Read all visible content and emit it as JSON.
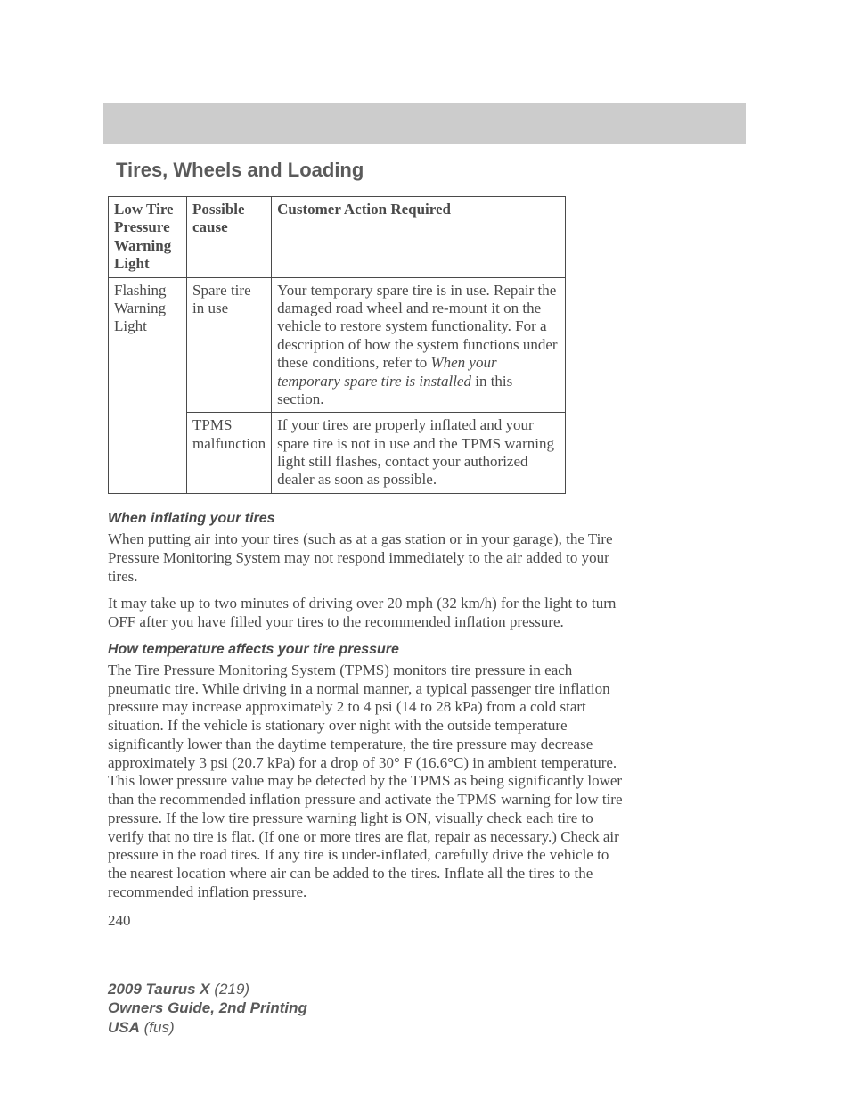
{
  "section_title": "Tires, Wheels and Loading",
  "table": {
    "headers": {
      "col1": "Low Tire Pressure Warning Light",
      "col2": "Possible cause",
      "col3": "Customer Action Required"
    },
    "row1": {
      "light": "Flashing Warning Light",
      "cause": "Spare tire in use",
      "action_pre": "Your temporary spare tire is in use. Repair the damaged road wheel and re-mount it on the vehicle to restore system functionality. For a description of how the system functions under these conditions, refer to ",
      "action_italic": "When your temporary spare tire is installed",
      "action_post": " in this section."
    },
    "row2": {
      "cause": "TPMS malfunction",
      "action": "If your tires are properly inflated and your spare tire is not in use and the TPMS warning light still flashes, contact your authorized dealer as soon as possible."
    }
  },
  "sub1": {
    "heading": "When inflating your tires",
    "p1": "When putting air into your tires (such as at a gas station or in your garage), the Tire Pressure Monitoring System may not respond immediately to the air added to your tires.",
    "p2": "It may take up to two minutes of driving over 20 mph (32 km/h) for the light to turn OFF after you have filled your tires to the recommended inflation pressure."
  },
  "sub2": {
    "heading": "How temperature affects your tire pressure",
    "p1": "The Tire Pressure Monitoring System (TPMS) monitors tire pressure in each pneumatic tire. While driving in a normal manner, a typical passenger tire inflation pressure may increase approximately 2 to 4 psi (14 to 28 kPa) from a cold start situation. If the vehicle is stationary over night with the outside temperature significantly lower than the daytime temperature, the tire pressure may decrease approximately 3 psi (20.7 kPa) for a drop of 30° F (16.6°C) in ambient temperature. This lower pressure value may be detected by the TPMS as being significantly lower than the recommended inflation pressure and activate the TPMS warning for low tire pressure. If the low tire pressure warning light is ON, visually check each tire to verify that no tire is flat. (If one or more tires are flat, repair as necessary.) Check air pressure in the road tires. If any tire is under-inflated, carefully drive the vehicle to the nearest location where air can be added to the tires. Inflate all the tires to the recommended inflation pressure."
  },
  "page_number": "240",
  "footer": {
    "line1_bold": "2009 Taurus X",
    "line1_rest": " (219)",
    "line2": "Owners Guide, 2nd Printing",
    "line3_bold": "USA",
    "line3_rest": " (fus)"
  }
}
